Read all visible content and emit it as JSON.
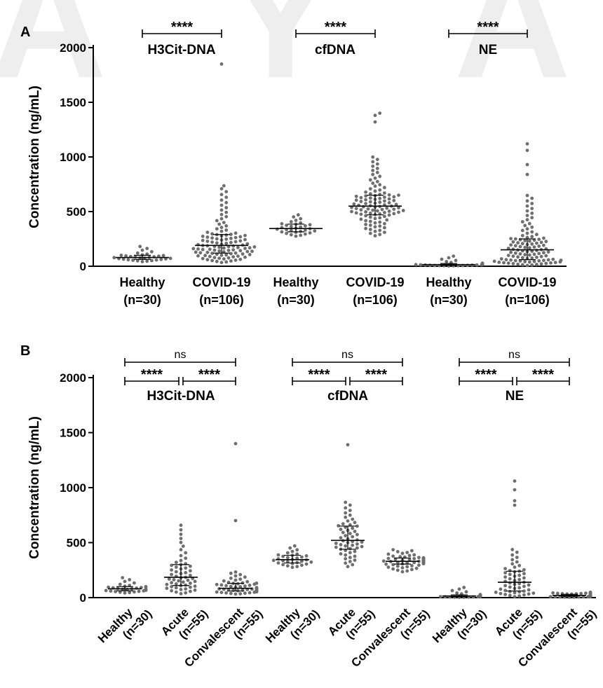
{
  "watermark": "A Y A",
  "chart_data": [
    {
      "panel": "A",
      "type": "scatter",
      "ylabel": "Concentration (ng/mL)",
      "ylim": [
        0,
        2000
      ],
      "yticks": [
        0,
        500,
        1000,
        1500,
        2000
      ],
      "categories": [
        {
          "line1": "Healthy",
          "line2": "(n=30)"
        },
        {
          "line1": "COVID-19",
          "line2": "(n=106)"
        },
        {
          "line1": "Healthy",
          "line2": "(n=30)"
        },
        {
          "line1": "COVID-19",
          "line2": "(n=106)"
        },
        {
          "line1": "Healthy",
          "line2": "(n=30)"
        },
        {
          "line1": "COVID-19",
          "line2": "(n=106)"
        }
      ],
      "analytes": [
        "H3Cit-DNA",
        "cfDNA",
        "NE"
      ],
      "groups": [
        {
          "n": 30,
          "median": 80,
          "q1": 62,
          "q3": 100,
          "min": 40,
          "max": 190,
          "outliers": []
        },
        {
          "n": 106,
          "median": 190,
          "q1": 120,
          "q3": 290,
          "min": 30,
          "max": 750,
          "outliers": [
            1850
          ]
        },
        {
          "n": 30,
          "median": 345,
          "q1": 315,
          "q3": 385,
          "min": 270,
          "max": 480,
          "outliers": []
        },
        {
          "n": 106,
          "median": 550,
          "q1": 470,
          "q3": 650,
          "min": 270,
          "max": 1010,
          "outliers": [
            1320,
            1380,
            1400
          ]
        },
        {
          "n": 30,
          "median": 15,
          "q1": 8,
          "q3": 25,
          "min": 2,
          "max": 100,
          "outliers": []
        },
        {
          "n": 106,
          "median": 150,
          "q1": 60,
          "q3": 250,
          "min": 5,
          "max": 660,
          "outliers": [
            840,
            930,
            1060,
            1120
          ]
        }
      ],
      "comparisons": [
        {
          "from": 0,
          "to": 1,
          "label": "****"
        },
        {
          "from": 2,
          "to": 3,
          "label": "****"
        },
        {
          "from": 4,
          "to": 5,
          "label": "****"
        }
      ]
    },
    {
      "panel": "B",
      "type": "scatter",
      "ylabel": "Concentration (ng/mL)",
      "ylim": [
        0,
        2000
      ],
      "yticks": [
        0,
        500,
        1000,
        1500,
        2000
      ],
      "categories": [
        {
          "line1": "Healthy",
          "line2": "(n=30)"
        },
        {
          "line1": "Acute",
          "line2": "(n=55)"
        },
        {
          "line1": "Convalescent",
          "line2": "(n=55)"
        },
        {
          "line1": "Healthy",
          "line2": "(n=30)"
        },
        {
          "line1": "Acute",
          "line2": "(n=55)"
        },
        {
          "line1": "Convalescent",
          "line2": "(n=55)"
        },
        {
          "line1": "Healthy",
          "line2": "(n=30)"
        },
        {
          "line1": "Acute",
          "line2": "(n=55)"
        },
        {
          "line1": "Convalescent",
          "line2": "(n=55)"
        }
      ],
      "analytes": [
        "H3Cit-DNA",
        "cfDNA",
        "NE"
      ],
      "groups": [
        {
          "n": 30,
          "median": 80,
          "q1": 62,
          "q3": 100,
          "min": 40,
          "max": 190,
          "outliers": []
        },
        {
          "n": 55,
          "median": 185,
          "q1": 110,
          "q3": 300,
          "min": 30,
          "max": 680,
          "outliers": []
        },
        {
          "n": 55,
          "median": 85,
          "q1": 60,
          "q3": 130,
          "min": 30,
          "max": 240,
          "outliers": [
            700,
            1400
          ]
        },
        {
          "n": 30,
          "median": 345,
          "q1": 315,
          "q3": 385,
          "min": 270,
          "max": 480,
          "outliers": []
        },
        {
          "n": 55,
          "median": 520,
          "q1": 440,
          "q3": 650,
          "min": 270,
          "max": 880,
          "outliers": [
            1390
          ]
        },
        {
          "n": 55,
          "median": 330,
          "q1": 305,
          "q3": 360,
          "min": 230,
          "max": 440,
          "outliers": []
        },
        {
          "n": 30,
          "median": 15,
          "q1": 8,
          "q3": 25,
          "min": 2,
          "max": 100,
          "outliers": []
        },
        {
          "n": 55,
          "median": 140,
          "q1": 60,
          "q3": 240,
          "min": 5,
          "max": 450,
          "outliers": [
            840,
            880,
            980,
            1060
          ]
        },
        {
          "n": 55,
          "median": 20,
          "q1": 12,
          "q3": 30,
          "min": 3,
          "max": 50,
          "outliers": []
        }
      ],
      "comparisons": [
        {
          "from": 0,
          "to": 1,
          "label": "****"
        },
        {
          "from": 1,
          "to": 2,
          "label": "****"
        },
        {
          "from": 0,
          "to": 2,
          "label": "ns"
        },
        {
          "from": 3,
          "to": 4,
          "label": "****"
        },
        {
          "from": 4,
          "to": 5,
          "label": "****"
        },
        {
          "from": 3,
          "to": 5,
          "label": "ns"
        },
        {
          "from": 6,
          "to": 7,
          "label": "****"
        },
        {
          "from": 7,
          "to": 8,
          "label": "****"
        },
        {
          "from": 6,
          "to": 8,
          "label": "ns"
        }
      ]
    }
  ],
  "colors": {
    "dot": "#6e6e6e",
    "axis": "#000000",
    "watermark": "#e6e6e6"
  }
}
